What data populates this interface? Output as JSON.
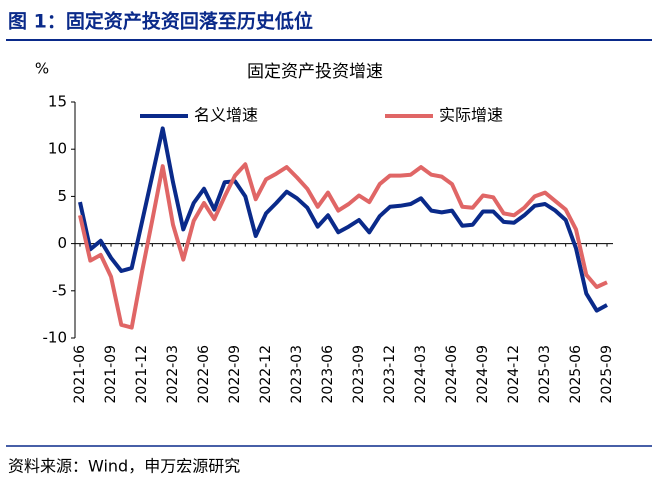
{
  "header": "图 1：固定资产投资回落至历史低位",
  "source": "资料来源：Wind，申万宏源研究",
  "chart_data": {
    "type": "line",
    "title": "固定资产投资增速",
    "y_label": "%",
    "categories": [
      "2021-06",
      null,
      null,
      "2021-09",
      null,
      null,
      "2021-12",
      null,
      null,
      "2022-03",
      null,
      null,
      "2022-06",
      null,
      null,
      "2022-09",
      null,
      null,
      "2022-12",
      null,
      null,
      "2023-03",
      null,
      null,
      "2023-06",
      null,
      null,
      "2023-09",
      null,
      null,
      "2023-12",
      null,
      null,
      "2024-03",
      null,
      null,
      "2024-06",
      null,
      null,
      "2024-09",
      null,
      null,
      "2024-12",
      null,
      null,
      "2025-03",
      null,
      null,
      "2025-06",
      null,
      null,
      "2025-09"
    ],
    "series": [
      {
        "name": "名义增速",
        "color": "#0a2a8a",
        "values": [
          4.4,
          -0.6,
          0.3,
          -1.5,
          -2.9,
          -2.6,
          2.3,
          7.2,
          12.2,
          6.5,
          1.5,
          4.3,
          5.8,
          3.6,
          6.5,
          6.6,
          5.0,
          0.8,
          3.2,
          4.3,
          5.5,
          4.8,
          3.8,
          1.8,
          3.0,
          1.2,
          1.8,
          2.5,
          1.2,
          2.9,
          3.9,
          4.0,
          4.2,
          4.8,
          3.5,
          3.3,
          3.5,
          1.9,
          2.0,
          3.4,
          3.4,
          2.3,
          2.2,
          3.0,
          4.0,
          4.2,
          3.5,
          2.5,
          -0.5,
          -5.3,
          -7.1,
          -6.5
        ]
      },
      {
        "name": "实际增速",
        "color": "#e06666",
        "values": [
          3.0,
          -1.8,
          -1.2,
          -3.5,
          -8.6,
          -8.9,
          -3.0,
          2.5,
          8.2,
          2.0,
          -1.7,
          2.4,
          4.3,
          2.6,
          5.0,
          7.2,
          8.4,
          4.7,
          6.8,
          7.4,
          8.1,
          7.0,
          5.8,
          3.9,
          5.4,
          3.5,
          4.2,
          5.1,
          4.4,
          6.3,
          7.2,
          7.2,
          7.3,
          8.1,
          7.3,
          7.1,
          6.3,
          3.9,
          3.8,
          5.1,
          4.9,
          3.2,
          3.0,
          3.8,
          5.0,
          5.4,
          4.5,
          3.6,
          1.5,
          -3.3,
          -4.6,
          -4.1
        ]
      }
    ],
    "ylim": [
      -10,
      15
    ],
    "yticks": [
      -10,
      -5,
      0,
      5,
      10,
      15
    ],
    "grid": false,
    "legend": "top"
  }
}
